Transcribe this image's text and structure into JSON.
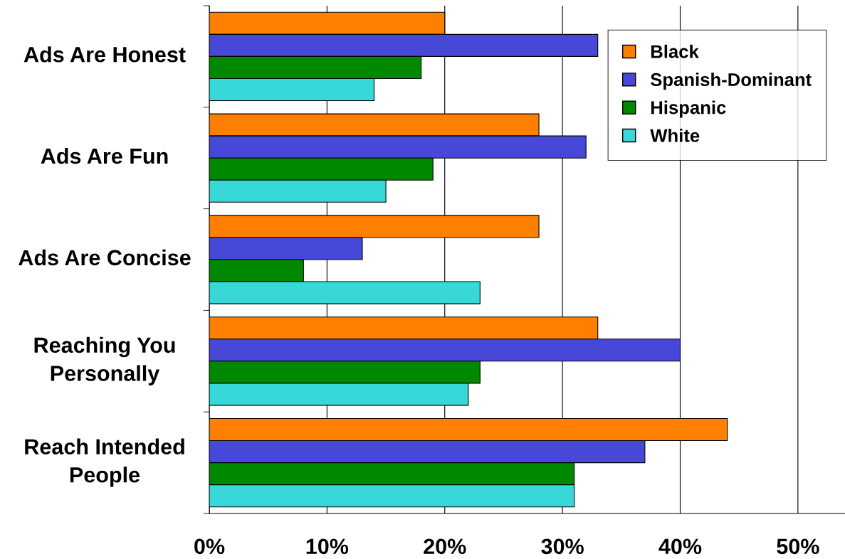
{
  "chart_data": {
    "type": "bar",
    "orientation": "horizontal",
    "categories": [
      "Ads Are Honest",
      "Ads Are Fun",
      "Ads Are Concise",
      "Reaching You Personally",
      "Reach Intended People"
    ],
    "series": [
      {
        "name": "Black",
        "color": "#ff8000",
        "values": [
          20,
          28,
          28,
          33,
          44
        ]
      },
      {
        "name": "Spanish-Dominant",
        "color": "#4848d8",
        "values": [
          33,
          32,
          13,
          40,
          37
        ]
      },
      {
        "name": "Hispanic",
        "color": "#008800",
        "values": [
          18,
          19,
          8,
          23,
          31
        ]
      },
      {
        "name": "White",
        "color": "#38d8d8",
        "values": [
          14,
          15,
          23,
          22,
          31
        ]
      }
    ],
    "xlim": [
      0,
      54
    ],
    "xticks": [
      {
        "value": 0,
        "label": "0%"
      },
      {
        "value": 10,
        "label": "10%"
      },
      {
        "value": 20,
        "label": "20%"
      },
      {
        "value": 30,
        "label": "30%"
      },
      {
        "value": 40,
        "label": "40%"
      },
      {
        "value": 50,
        "label": "50%"
      }
    ],
    "grid": "x",
    "legend": "top right"
  }
}
